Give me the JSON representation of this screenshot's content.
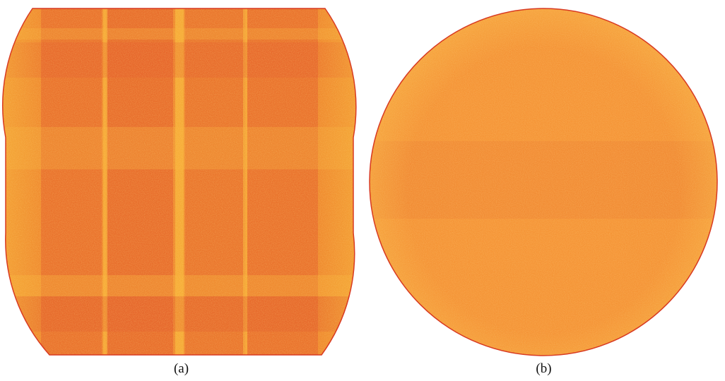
{
  "panels": [
    {
      "id": "a",
      "caption": "(a)",
      "colors": {
        "base": "#f08a2e",
        "light": "#f8b43a",
        "dark": "#e2552a",
        "edge": "#d83a22"
      },
      "pattern": "dense-grid"
    },
    {
      "id": "b",
      "caption": "(b)",
      "colors": {
        "base": "#f59436",
        "light": "#f9b647",
        "dark": "#ea6a2e",
        "edge": "#d83a22"
      },
      "pattern": "uniform"
    }
  ]
}
